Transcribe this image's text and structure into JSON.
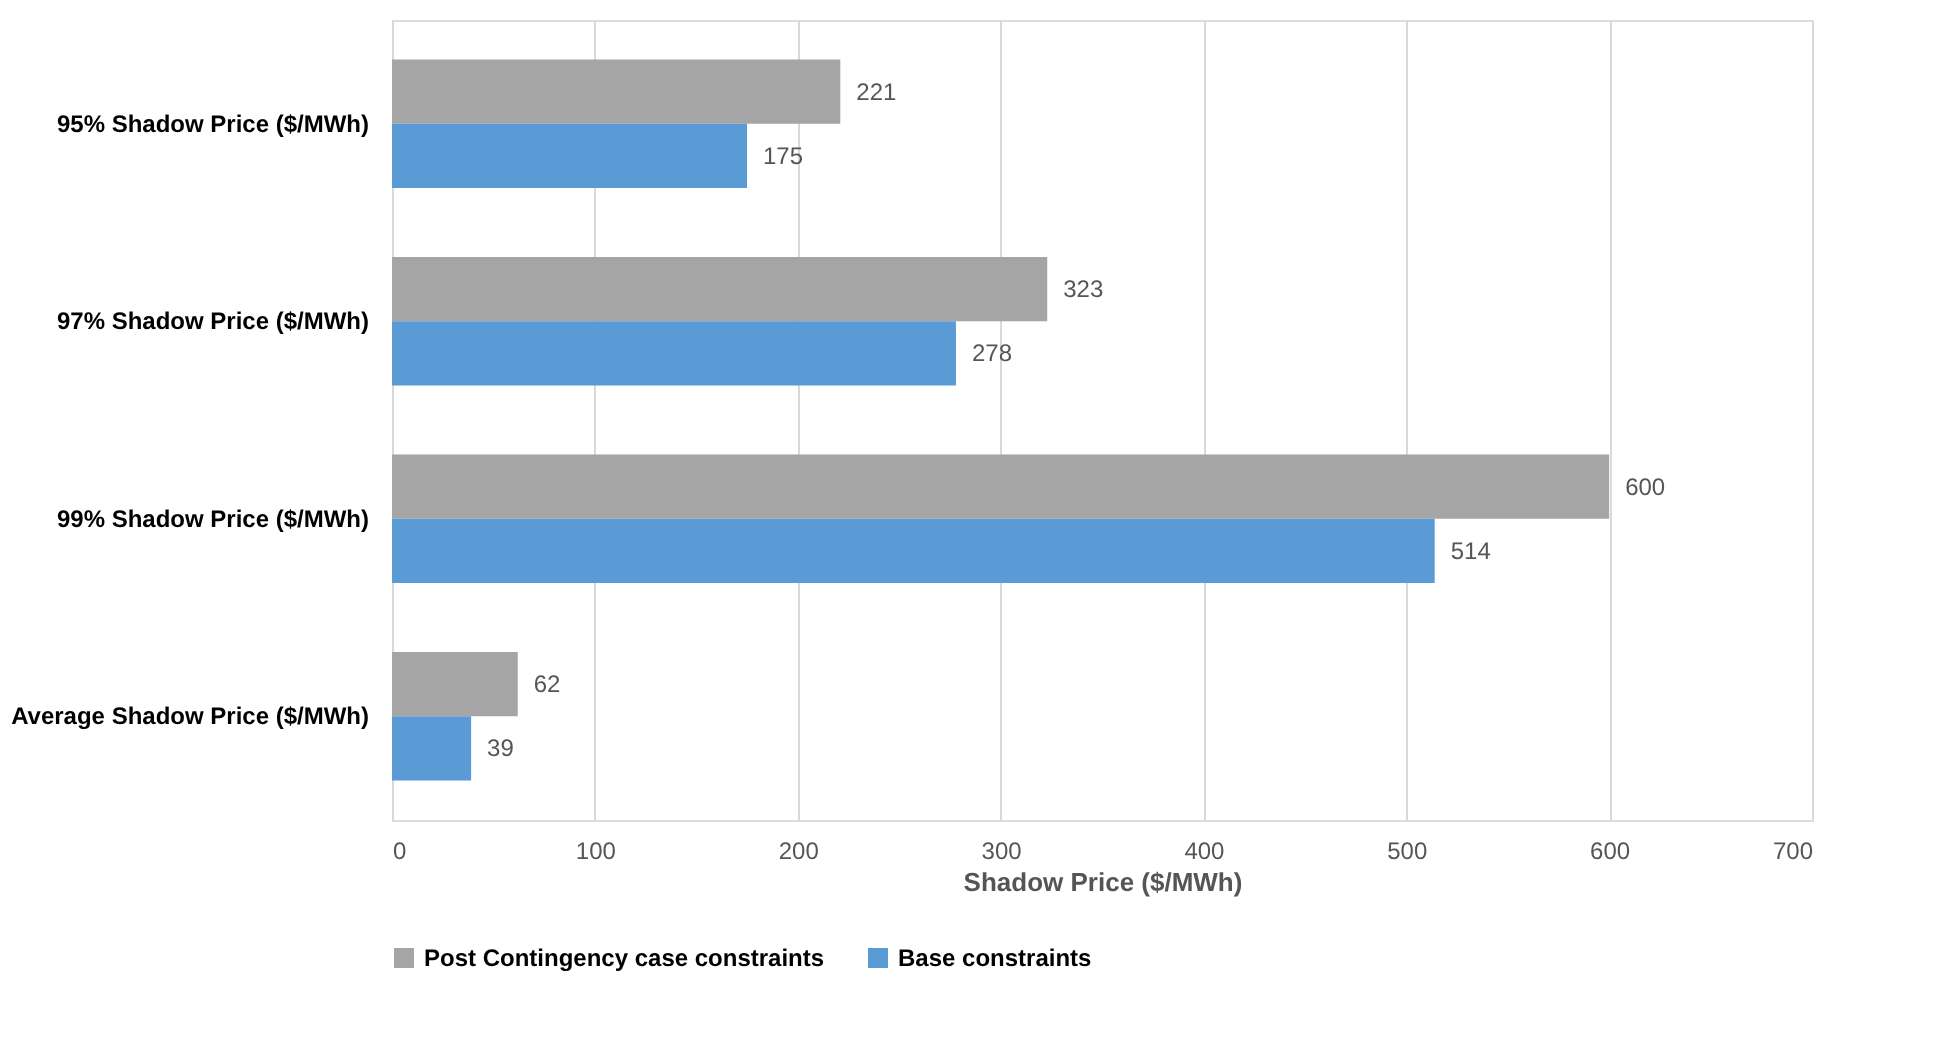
{
  "chart_data": {
    "type": "bar",
    "orientation": "horizontal",
    "xlabel": "Shadow Price ($/MWh)",
    "categories": [
      "95% Shadow Price ($/MWh)",
      "97% Shadow Price ($/MWh)",
      "99% Shadow Price ($/MWh)",
      "Average Shadow Price ($/MWh)"
    ],
    "series": [
      {
        "name": "Post Contingency case constraints",
        "color": "#a5a5a5",
        "values": [
          221,
          323,
          600,
          62
        ]
      },
      {
        "name": "Base  constraints",
        "color": "#5b9bd5",
        "values": [
          175,
          278,
          514,
          39
        ]
      }
    ],
    "xlim": [
      0,
      700
    ],
    "xticks": [
      0,
      100,
      200,
      300,
      400,
      500,
      600,
      700
    ],
    "grid": "x",
    "legend": "bottom",
    "data_labels": true
  }
}
